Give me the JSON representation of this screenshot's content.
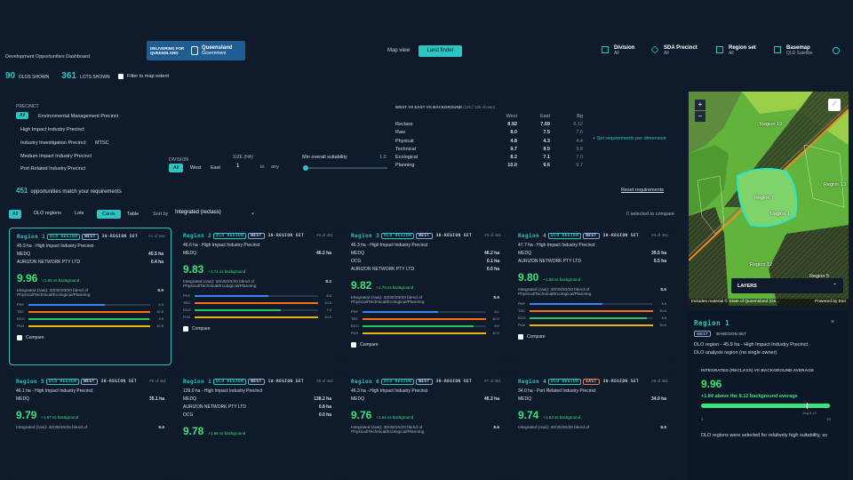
{
  "header": {
    "app_title": "Development Opportunities Dashboard",
    "logo_left": "DELIVERING FOR QUEENSLAND",
    "logo_right_1": "Queensland",
    "logo_right_2": "Government",
    "map_view": "Map view",
    "land_finder": "Land finder",
    "division_label": "Division",
    "division_value": "All",
    "sda_label": "SDA Precinct",
    "sda_value": "All",
    "regionset_label": "Region set",
    "regionset_value": "All",
    "basemap_label": "Basemap",
    "basemap_value": "QLD Satellite"
  },
  "stats": {
    "dlos_count": "90",
    "dlos_label": "DLOS SHOWN",
    "lots_count": "361",
    "lots_label": "LOTS SHOWN",
    "filter_label": "Filter to map extent"
  },
  "filters": {
    "precinct_heading": "PRECINCT",
    "precinct_all": "All",
    "precincts": [
      "Environmental Management Precinct",
      "High Impact Industry Precinct",
      "Industry Investigation Precinct",
      "MTSC",
      "Medium Impact Industry Precinct",
      "Port Related Industry Precinct"
    ],
    "division_heading": "DIVISION",
    "division_opts": [
      "All",
      "West",
      "East"
    ],
    "size_heading": "SIZE (HA)",
    "size_min": "1",
    "size_to": "to",
    "size_max": "any",
    "suit_label": "Min overall suitability",
    "suit_value": "1.0"
  },
  "compare_table": {
    "title": "WEST VS EAST VS BACKGROUND",
    "subtitle": "(120 / 336 shown)",
    "cols": [
      "West",
      "East",
      "Bg"
    ],
    "rows": [
      {
        "label": "Reclass",
        "west": "8.92",
        "east": "7.69",
        "bg": "8.12"
      },
      {
        "label": "Raw",
        "west": "8.0",
        "east": "7.5",
        "bg": "7.6"
      },
      {
        "label": "Physical",
        "west": "4.8",
        "east": "4.3",
        "bg": "4.4"
      },
      {
        "label": "Technical",
        "west": "9.7",
        "east": "9.5",
        "bg": "9.8"
      },
      {
        "label": "Ecological",
        "west": "8.2",
        "east": "7.1",
        "bg": "7.0"
      },
      {
        "label": "Planning",
        "west": "10.0",
        "east": "9.6",
        "bg": "9.7"
      }
    ],
    "set_req": "+ Set requirements per dimension",
    "reset": "Reset requirements"
  },
  "results": {
    "count": "451",
    "label": "opportunities match your requirements",
    "tabs": [
      "All",
      "DLO regions",
      "Lots"
    ],
    "view_cards": "Cards",
    "view_table": "Table",
    "sort_label": "Sort by",
    "sort_value": "Integrated (reclass)",
    "selected_num": "0",
    "selected_label": "selected to compare"
  },
  "cards": [
    {
      "title": "Region 1",
      "tags": [
        "DLO REGION",
        "WEST",
        "30-REGION SET"
      ],
      "rank": "#1 of 451",
      "subtitle": "45.9 ha - High Impact Industry Precinct",
      "owners": [
        [
          "MEDQ",
          "45.5 ha"
        ],
        [
          "AURIZON NETWORK PTY LTD",
          "0.4 ha"
        ]
      ],
      "score": "9.96",
      "delta": "+1.84 vs background",
      "desc1": "Integrated (raw): 30/30/20/20 blend of",
      "desc2": "Physical/Technical/Ecological/Planning",
      "raw": "8.9",
      "bars": [
        [
          "PHY",
          "6.3",
          0.63
        ],
        [
          "TEC",
          "10.0",
          1
        ],
        [
          "ECO",
          "9.9",
          0.99
        ],
        [
          "PLN",
          "10.0",
          1
        ]
      ],
      "compare": "Compare"
    },
    {
      "title": "Region 2",
      "tags": [
        "DLO REGION",
        "WEST",
        "30-REGION SET"
      ],
      "rank": "#2 of 451",
      "subtitle": "46.6 ha - High Impact Industry Precinct",
      "owners": [
        [
          "MEDQ",
          "46.2 ha"
        ]
      ],
      "score": "9.83",
      "delta": "+1.71 vs background",
      "desc1": "Integrated (raw): 30/30/20/20 blend of",
      "desc2": "Physical/Technical/Ecological/Planning",
      "raw": "8.2",
      "bars": [
        [
          "PHY",
          "6.0",
          0.6
        ],
        [
          "TEC",
          "10.0",
          1
        ],
        [
          "ECO",
          "7.0",
          0.7
        ],
        [
          "PLN",
          "10.0",
          1
        ]
      ],
      "compare": "Compare"
    },
    {
      "title": "Region 3",
      "tags": [
        "DLO REGION",
        "WEST",
        "30-REGION SET"
      ],
      "rank": "#3 of 451",
      "subtitle": "46.3 ha - High Impact Industry Precinct",
      "owners": [
        [
          "MEDQ",
          "46.2 ha"
        ],
        [
          "OCG",
          "0.1 ha"
        ],
        [
          "AURIZON NETWORK PTY LTD",
          "0.0 ha"
        ]
      ],
      "score": "9.82",
      "delta": "+1.70 vs background",
      "desc1": "Integrated (raw): 30/30/20/20 blend of",
      "desc2": "Physical/Technical/Ecological/Planning",
      "raw": "8.6",
      "bars": [
        [
          "PHY",
          "6.1",
          0.61
        ],
        [
          "TEC",
          "10.0",
          1
        ],
        [
          "ECO",
          "9.0",
          0.9
        ],
        [
          "PLN",
          "10.0",
          1
        ]
      ],
      "compare": "Compare"
    },
    {
      "title": "Region 4",
      "tags": [
        "DLO REGION",
        "WEST",
        "30-REGION SET"
      ],
      "rank": "#4 of 451",
      "subtitle": "47.7 ha - High Impact Industry Precinct",
      "owners": [
        [
          "MEDQ",
          "39.5 ha"
        ],
        [
          "AURIZON NETWORK PTY LTD",
          "6.5 ha"
        ]
      ],
      "score": "9.80",
      "delta": "+1.68 vs background",
      "desc1": "Integrated (raw): 30/30/20/20 blend of",
      "desc2": "Physical/Technical/Ecological/Planning",
      "raw": "8.6",
      "bars": [
        [
          "PHY",
          "5.9",
          0.59
        ],
        [
          "TEC",
          "10.0",
          1
        ],
        [
          "ECO",
          "9.5",
          0.95
        ],
        [
          "PLN",
          "10.0",
          1
        ]
      ],
      "compare": "Compare"
    },
    {
      "title": "Region 5",
      "tags": [
        "DLO REGION",
        "WEST",
        "30-REGION SET"
      ],
      "rank": "#5 of 451",
      "subtitle": "46.1 ha - High Impact Industry Precinct",
      "owners": [
        [
          "MEDQ",
          "35.1 ha"
        ]
      ],
      "score": "9.79",
      "delta": "+1.67 vs background",
      "desc1": "Integrated (raw): 30/30/20/20 blend of",
      "desc2": "",
      "raw": "8.6",
      "bars": [],
      "compare": ""
    },
    {
      "title": "Region 1",
      "tags": [
        "DLO REGION",
        "WEST",
        "10-REGION SET"
      ],
      "rank": "#6 of 451",
      "subtitle": "139.0 ha - High Impact Industry Precinct",
      "owners": [
        [
          "MEDQ",
          "138.2 ha"
        ],
        [
          "AURIZON NETWORK PTY LTD",
          "0.8 ha"
        ],
        [
          "OCG",
          "0.0 ha"
        ]
      ],
      "score": "9.78",
      "delta": "+1.66 vs background",
      "desc1": "",
      "desc2": "",
      "raw": "",
      "bars": [],
      "compare": ""
    },
    {
      "title": "Region 6",
      "tags": [
        "DLO REGION",
        "WEST",
        "30-REGION SET"
      ],
      "rank": "#7 of 451",
      "subtitle": "46.3 ha - High Impact Industry Precinct",
      "owners": [
        [
          "MEDQ",
          "46.3 ha"
        ]
      ],
      "score": "9.76",
      "delta": "+1.64 vs background",
      "desc1": "Integrated (raw): 30/30/20/20 blend of",
      "desc2": "Physical/Technical/Ecological/Planning",
      "raw": "8.6",
      "bars": [],
      "compare": ""
    },
    {
      "title": "Region 4",
      "tags": [
        "DLO REGION",
        "EAST",
        "30-REGION SET"
      ],
      "rank": "#8 of 451",
      "subtitle": "34.0 ha - Port Related Industry Precinct",
      "owners": [
        [
          "MEDQ",
          "34.0 ha"
        ]
      ],
      "score": "9.74",
      "delta": "+1.62 vs background",
      "desc1": "Integrated (raw): 30/30/20/20 blend of",
      "desc2": "",
      "raw": "8.6",
      "bars": [],
      "compare": ""
    }
  ],
  "map": {
    "labels": [
      "Region 19",
      "Region 7",
      "Region 1",
      "Region 13",
      "Region 12",
      "Region 5"
    ],
    "layers": "LAYERS",
    "attribution": "Includes material © State of Queensland (De...",
    "powered": "Powered by Esri"
  },
  "detail": {
    "title": "Region 1",
    "tags": [
      "WEST",
      "30-REGION SET"
    ],
    "line1": "DLO region - 45.9 ha - High Impact Industry Precinct",
    "line2": "DLO analysis region (no single owner)",
    "section": "INTEGRATED (RECLASS) VS BACKGROUND AVERAGE",
    "score": "9.96",
    "above": "+1.84 above the 8.12 background average",
    "score_frac": 0.996,
    "bg_frac": 0.812,
    "bg_label": "avg 8.12",
    "axis_min": "1",
    "axis_max": "10",
    "note": "DLO regions were selected for relatively high suitability, so"
  }
}
